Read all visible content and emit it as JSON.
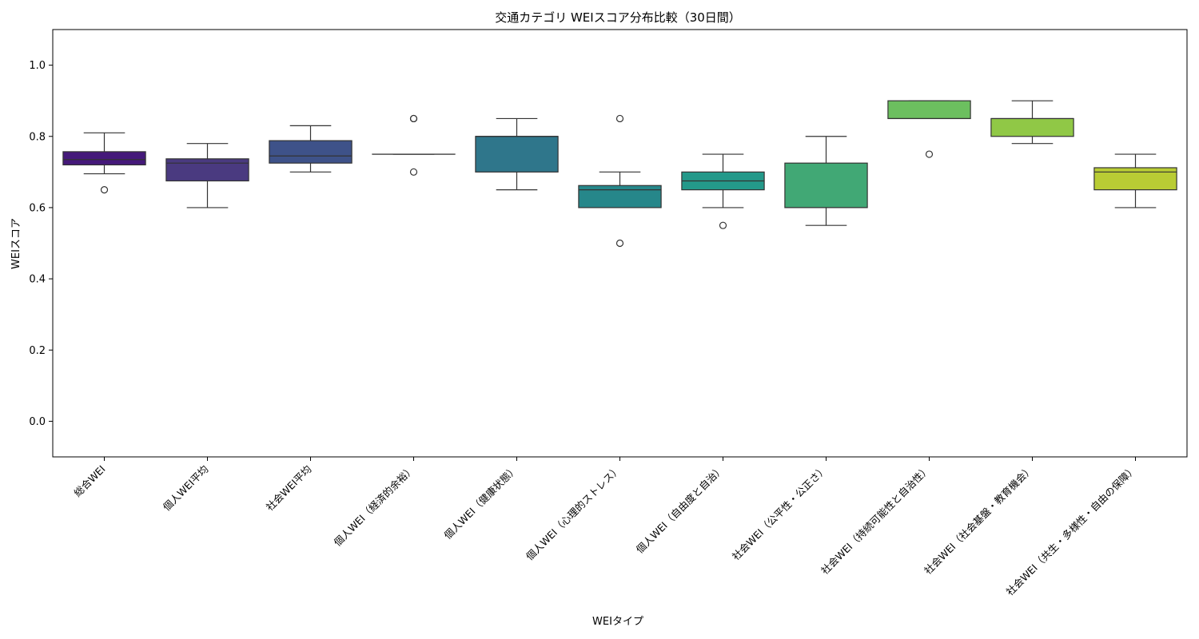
{
  "chart_data": {
    "type": "box",
    "title": "交通カテゴリ WEIスコア分布比較（30日間）",
    "xlabel": "WEIタイプ",
    "ylabel": "WEIスコア",
    "ylim": [
      -0.1,
      1.1
    ],
    "yticks": [
      "0.0",
      "0.2",
      "0.4",
      "0.6",
      "0.8",
      "1.0"
    ],
    "ytick_values": [
      0.0,
      0.2,
      0.4,
      0.6,
      0.8,
      1.0
    ],
    "boxes": [
      {
        "label": "総合WEI",
        "q1": 0.72,
        "median": 0.735,
        "q3": 0.757,
        "whislo": 0.695,
        "whishi": 0.81,
        "fliers": [
          0.65
        ],
        "color": "#45197a"
      },
      {
        "label": "個人WEI平均",
        "q1": 0.675,
        "median": 0.725,
        "q3": 0.737,
        "whislo": 0.6,
        "whishi": 0.78,
        "fliers": [],
        "color": "#4a3a80"
      },
      {
        "label": "社会WEI平均",
        "q1": 0.725,
        "median": 0.745,
        "q3": 0.788,
        "whislo": 0.7,
        "whishi": 0.83,
        "fliers": [],
        "color": "#3e5289"
      },
      {
        "label": "個人WEI（経済的余裕）",
        "q1": 0.75,
        "median": 0.75,
        "q3": 0.75,
        "whislo": 0.75,
        "whishi": 0.75,
        "fliers": [
          0.85,
          0.85,
          0.7
        ],
        "color": "#37668d"
      },
      {
        "label": "個人WEI（健康状態）",
        "q1": 0.7,
        "median": 0.8,
        "q3": 0.8,
        "whislo": 0.65,
        "whishi": 0.85,
        "fliers": [],
        "color": "#2f768b"
      },
      {
        "label": "個人WEI（心理的ストレス）",
        "q1": 0.6,
        "median": 0.65,
        "q3": 0.662,
        "whislo": 0.6,
        "whishi": 0.7,
        "fliers": [
          0.85,
          0.5
        ],
        "color": "#26878a"
      },
      {
        "label": "個人WEI（自由度と自治）",
        "q1": 0.65,
        "median": 0.675,
        "q3": 0.7,
        "whislo": 0.6,
        "whishi": 0.75,
        "fliers": [
          0.55
        ],
        "color": "#24998a"
      },
      {
        "label": "社会WEI（公平性・公正さ）",
        "q1": 0.6,
        "median": 0.6,
        "q3": 0.725,
        "whislo": 0.55,
        "whishi": 0.8,
        "fliers": [],
        "color": "#41a875"
      },
      {
        "label": "社会WEI（持続可能性と自治性）",
        "q1": 0.85,
        "median": 0.85,
        "q3": 0.9,
        "whislo": 0.85,
        "whishi": 0.9,
        "fliers": [
          0.75
        ],
        "color": "#6cbf5f"
      },
      {
        "label": "社会WEI（社会基盤・教育機会）",
        "q1": 0.8,
        "median": 0.85,
        "q3": 0.85,
        "whislo": 0.78,
        "whishi": 0.9,
        "fliers": [],
        "color": "#90c846"
      },
      {
        "label": "社会WEI（共生・多様性・自由の保障）",
        "q1": 0.65,
        "median": 0.7,
        "q3": 0.712,
        "whislo": 0.6,
        "whishi": 0.75,
        "fliers": [],
        "color": "#b9cc34"
      }
    ]
  }
}
